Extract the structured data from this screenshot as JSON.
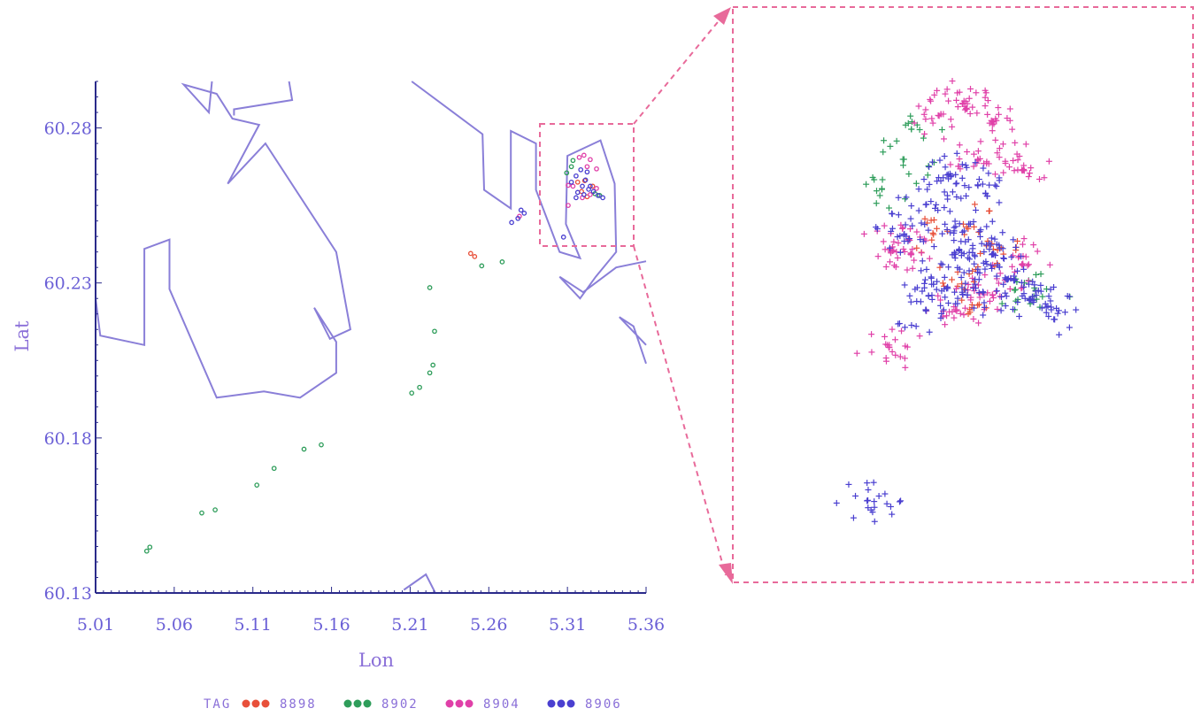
{
  "chart_data": {
    "type": "scatter",
    "title": "",
    "xlabel": "Lon",
    "ylabel": "Lat",
    "xlim": [
      5.01,
      5.36
    ],
    "ylim": [
      60.13,
      60.295
    ],
    "x_ticks": [
      "5.01",
      "5.06",
      "5.11",
      "5.16",
      "5.21",
      "5.26",
      "5.31",
      "5.36"
    ],
    "y_ticks": [
      "60.13",
      "60.18",
      "60.23",
      "60.28"
    ],
    "grid": false,
    "legend": {
      "title": "TAG",
      "placement": "bottom",
      "entries": [
        "8898",
        "8902",
        "8904",
        "8906"
      ]
    },
    "colors": {
      "8898": "#e8503a",
      "8902": "#2e9d5a",
      "8904": "#e040a8",
      "8906": "#4a3fd0",
      "coastline": "#8a7fd8",
      "zoom_box": "#e86a9a",
      "axis": "#2a2a8a",
      "tick_text": "#6a5fd6"
    },
    "coastlines": [
      {
        "points": [
          [
            5.01,
            60.225
          ],
          [
            5.013,
            60.213
          ],
          [
            5.041,
            60.21
          ],
          [
            5.041,
            60.241
          ],
          [
            5.057,
            60.244
          ],
          [
            5.057,
            60.228
          ],
          [
            5.087,
            60.193
          ],
          [
            5.117,
            60.195
          ],
          [
            5.14,
            60.193
          ],
          [
            5.163,
            60.201
          ],
          [
            5.163,
            60.211
          ],
          [
            5.149,
            60.222
          ],
          [
            5.159,
            60.212
          ],
          [
            5.172,
            60.215
          ],
          [
            5.163,
            60.24
          ],
          [
            5.118,
            60.275
          ],
          [
            5.094,
            60.262
          ],
          [
            5.114,
            60.281
          ],
          [
            5.097,
            60.283
          ],
          [
            5.087,
            60.291
          ],
          [
            5.066,
            60.294
          ],
          [
            5.082,
            60.285
          ],
          [
            5.084,
            60.295
          ]
        ]
      },
      {
        "points": [
          [
            5.133,
            60.295
          ],
          [
            5.135,
            60.289
          ],
          [
            5.098,
            60.286
          ],
          [
            5.098,
            60.284
          ]
        ]
      },
      {
        "points": [
          [
            5.211,
            60.295
          ],
          [
            5.256,
            60.278
          ],
          [
            5.257,
            60.26
          ],
          [
            5.274,
            60.254
          ],
          [
            5.274,
            60.279
          ],
          [
            5.29,
            60.275
          ],
          [
            5.29,
            60.26
          ],
          [
            5.296,
            60.252
          ],
          [
            5.305,
            60.24
          ],
          [
            5.318,
            60.238
          ],
          [
            5.309,
            60.249
          ],
          [
            5.31,
            60.271
          ],
          [
            5.331,
            60.276
          ],
          [
            5.34,
            60.262
          ],
          [
            5.341,
            60.24
          ],
          [
            5.328,
            60.232
          ],
          [
            5.318,
            60.225
          ],
          [
            5.305,
            60.232
          ],
          [
            5.32,
            60.227
          ],
          [
            5.341,
            60.235
          ],
          [
            5.36,
            60.237
          ]
        ]
      },
      {
        "points": [
          [
            5.36,
            60.21
          ],
          [
            5.343,
            60.219
          ],
          [
            5.352,
            60.216
          ],
          [
            5.36,
            60.204
          ]
        ]
      },
      {
        "points": [
          [
            5.206,
            60.131
          ],
          [
            5.22,
            60.136
          ],
          [
            5.226,
            60.13
          ]
        ]
      }
    ],
    "series": [
      {
        "name": "8898",
        "points": [
          [
            5.3165,
            60.2625
          ],
          [
            5.319,
            60.2595
          ],
          [
            5.3225,
            60.2578
          ],
          [
            5.326,
            60.2612
          ],
          [
            5.321,
            60.263
          ],
          [
            5.2485,
            60.2395
          ],
          [
            5.251,
            60.2385
          ]
        ]
      },
      {
        "name": "8902",
        "points": [
          [
            5.0425,
            60.1435
          ],
          [
            5.0445,
            60.1448
          ],
          [
            5.0775,
            60.1558
          ],
          [
            5.086,
            60.1568
          ],
          [
            5.1125,
            60.1648
          ],
          [
            5.1235,
            60.1702
          ],
          [
            5.1425,
            60.1764
          ],
          [
            5.1535,
            60.1778
          ],
          [
            5.211,
            60.1945
          ],
          [
            5.216,
            60.1963
          ],
          [
            5.2225,
            60.201
          ],
          [
            5.2245,
            60.2035
          ],
          [
            5.2255,
            60.2144
          ],
          [
            5.2225,
            60.2285
          ],
          [
            5.2555,
            60.2355
          ],
          [
            5.2685,
            60.2368
          ],
          [
            5.3135,
            60.2695
          ],
          [
            5.3125,
            60.2675
          ],
          [
            5.3275,
            60.2588
          ],
          [
            5.3305,
            60.2582
          ],
          [
            5.3095,
            60.2655
          ]
        ]
      },
      {
        "name": "8904",
        "points": [
          [
            5.3105,
            60.2615
          ],
          [
            5.3175,
            60.2705
          ],
          [
            5.3205,
            60.2712
          ],
          [
            5.3245,
            60.2698
          ],
          [
            5.3285,
            60.2668
          ],
          [
            5.3285,
            60.2605
          ],
          [
            5.3245,
            60.2585
          ],
          [
            5.3195,
            60.2575
          ],
          [
            5.3135,
            60.2612
          ],
          [
            5.3225,
            60.2675
          ],
          [
            5.2795,
            60.2515
          ],
          [
            5.3105,
            60.255
          ]
        ]
      },
      {
        "name": "8906",
        "points": [
          [
            5.3125,
            60.2625
          ],
          [
            5.3155,
            60.2645
          ],
          [
            5.3185,
            60.2665
          ],
          [
            5.3225,
            60.2658
          ],
          [
            5.3245,
            60.2612
          ],
          [
            5.3265,
            60.2595
          ],
          [
            5.3295,
            60.2582
          ],
          [
            5.3325,
            60.2575
          ],
          [
            5.3155,
            60.2575
          ],
          [
            5.3195,
            60.2612
          ],
          [
            5.3215,
            60.2632
          ],
          [
            5.3235,
            60.2602
          ],
          [
            5.3205,
            60.2585
          ],
          [
            5.3165,
            60.2592
          ],
          [
            5.2805,
            60.2535
          ],
          [
            5.2825,
            60.2525
          ],
          [
            5.2745,
            60.2495
          ],
          [
            5.2785,
            60.2508
          ],
          [
            5.3075,
            60.2448
          ]
        ]
      }
    ]
  }
}
